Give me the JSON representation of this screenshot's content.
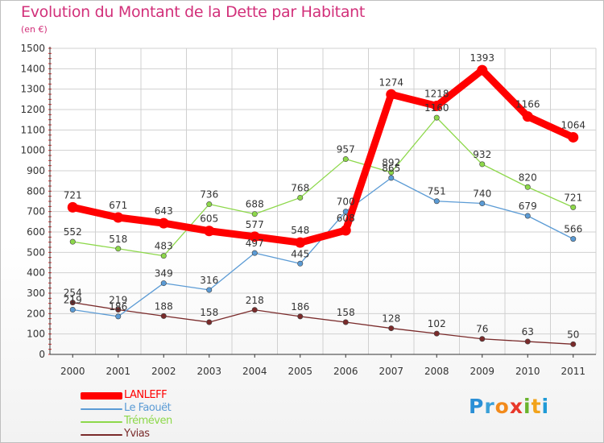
{
  "title": "Evolution du Montant de la Dette par Habitant",
  "subtitle": "(en €)",
  "brand": {
    "letters": [
      "P",
      "r",
      "o",
      "x",
      "i",
      "t",
      "i"
    ],
    "colors": [
      "#2a8fd6",
      "#3aa0d8",
      "#f28a1b",
      "#e8382a",
      "#6ab42d",
      "#f2a31b",
      "#1f9ad6"
    ]
  },
  "chart_data": {
    "type": "line",
    "title": "Evolution du Montant de la Dette par Habitant",
    "ylabel": "(en €)",
    "xlabel": "",
    "x": [
      "2000",
      "2001",
      "2002",
      "2003",
      "2004",
      "2005",
      "2006",
      "2007",
      "2008",
      "2009",
      "2010",
      "2011"
    ],
    "ylim": [
      0,
      1500
    ],
    "yticks": [
      0,
      100,
      200,
      300,
      400,
      500,
      600,
      700,
      800,
      900,
      1000,
      1100,
      1200,
      1300,
      1400,
      1500
    ],
    "grid": true,
    "legend": "bottom-left",
    "series": [
      {
        "name": "Yvias",
        "color": "#7a2b2b",
        "values": [
          254,
          219,
          188,
          158,
          218,
          186,
          158,
          128,
          102,
          76,
          63,
          50
        ]
      },
      {
        "name": "Le Faouët",
        "color": "#5b9bd5",
        "values": [
          219,
          186,
          349,
          316,
          497,
          445,
          700,
          865,
          751,
          740,
          679,
          566
        ]
      },
      {
        "name": "Tréméven",
        "color": "#8dd84a",
        "values": [
          552,
          518,
          483,
          736,
          688,
          768,
          957,
          892,
          1160,
          932,
          820,
          721
        ]
      },
      {
        "name": "LANLEFF",
        "color": "#ff0000",
        "values": [
          721,
          671,
          643,
          605,
          577,
          548,
          608,
          1274,
          1218,
          1393,
          1166,
          1064
        ]
      }
    ],
    "legend_order": [
      "LANLEFF",
      "Le Faouët",
      "Tréméven",
      "Yvias"
    ]
  }
}
